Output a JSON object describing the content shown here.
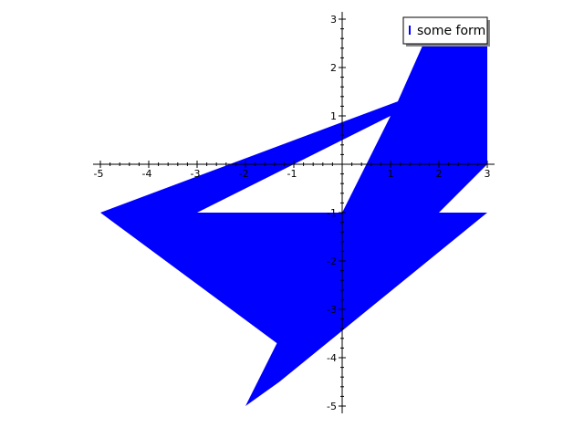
{
  "chart_data": {
    "type": "area",
    "title": "",
    "xlabel": "",
    "ylabel": "",
    "xlim": [
      -5,
      3
    ],
    "ylim": [
      -5,
      3
    ],
    "x_ticks": [
      "-5",
      "-4",
      "-3",
      "-2",
      "-1",
      "1",
      "2",
      "3"
    ],
    "y_ticks": [
      "-5",
      "-4",
      "-3",
      "-2",
      "-1",
      "1",
      "2",
      "3"
    ],
    "grid": false,
    "legend_position": "top-right",
    "fill_color": "#0000ff",
    "series": [
      {
        "name": "some form",
        "polygon": [
          [
            -5,
            -1
          ],
          [
            1.15,
            1.3
          ],
          [
            1.75,
            2.65
          ],
          [
            3,
            2.65
          ],
          [
            3,
            0
          ],
          [
            2,
            -1
          ],
          [
            3,
            -1
          ],
          [
            -1.3,
            -4.5
          ],
          [
            -2,
            -5
          ],
          [
            -1.35,
            -3.7
          ],
          [
            -5,
            -1
          ]
        ],
        "hole": [
          [
            -3,
            -1
          ],
          [
            0,
            -1
          ],
          [
            1,
            1
          ],
          [
            -3,
            -1
          ]
        ]
      }
    ]
  }
}
